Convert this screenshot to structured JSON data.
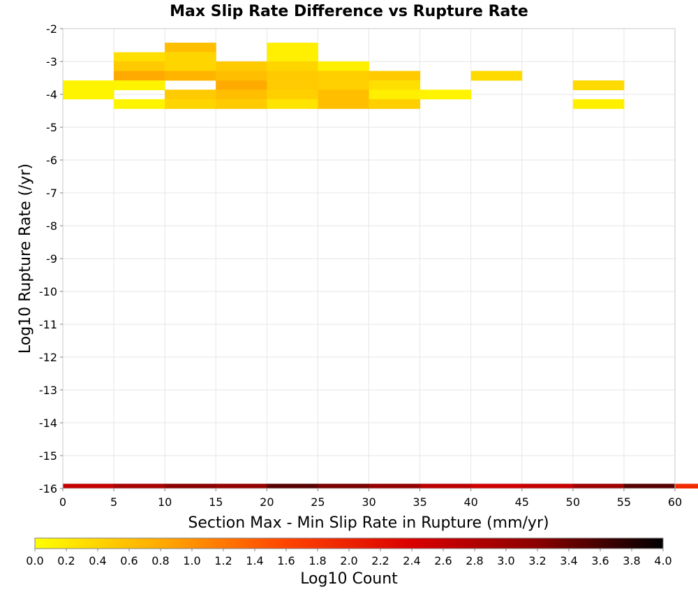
{
  "chart_data": {
    "type": "heatmap",
    "title": "Max Slip Rate Difference vs Rupture Rate",
    "xlabel": "Section Max - Min Slip Rate in Rupture (mm/yr)",
    "ylabel": "Log10 Rupture Rate (/yr)",
    "xlim": [
      0,
      60
    ],
    "ylim": [
      -16,
      -2
    ],
    "x_ticks": [
      "0",
      "5",
      "10",
      "15",
      "20",
      "25",
      "30",
      "35",
      "40",
      "45",
      "50",
      "55",
      "60"
    ],
    "y_ticks": [
      "-2",
      "-3",
      "-4",
      "-5",
      "-6",
      "-7",
      "-8",
      "-9",
      "-10",
      "-11",
      "-12",
      "-13",
      "-14",
      "-15",
      "-16"
    ],
    "grid": true,
    "cell_width": 5,
    "cell_height": 0.2857,
    "colorbar": {
      "label": "Log10 Count",
      "range": [
        0,
        4
      ],
      "ticks": [
        "0.0",
        "0.2",
        "0.4",
        "0.6",
        "0.8",
        "1.0",
        "1.2",
        "1.4",
        "1.6",
        "1.8",
        "2.0",
        "2.2",
        "2.4",
        "2.6",
        "2.8",
        "3.0",
        "3.2",
        "3.4",
        "3.6",
        "3.8",
        "4.0"
      ],
      "colors": [
        "#ffff00",
        "#ffaa00",
        "#ff4400",
        "#d90000",
        "#8a0000",
        "#000000"
      ]
    },
    "cells": [
      {
        "x0": 0,
        "y": -3.72,
        "value": 0.1
      },
      {
        "x0": 0,
        "y": -4.0,
        "value": 0.1
      },
      {
        "x0": 5,
        "y": -2.86,
        "value": 0.3
      },
      {
        "x0": 5,
        "y": -3.14,
        "value": 0.5
      },
      {
        "x0": 5,
        "y": -3.43,
        "value": 0.8
      },
      {
        "x0": 5,
        "y": -3.72,
        "value": 0.1
      },
      {
        "x0": 5,
        "y": -4.29,
        "value": 0.1
      },
      {
        "x0": 10,
        "y": -2.57,
        "value": 0.6
      },
      {
        "x0": 10,
        "y": -2.86,
        "value": 0.4
      },
      {
        "x0": 10,
        "y": -3.14,
        "value": 0.4
      },
      {
        "x0": 10,
        "y": -3.43,
        "value": 0.7
      },
      {
        "x0": 10,
        "y": -4.0,
        "value": 0.5
      },
      {
        "x0": 10,
        "y": -4.29,
        "value": 0.4
      },
      {
        "x0": 15,
        "y": -3.14,
        "value": 0.5
      },
      {
        "x0": 15,
        "y": -3.43,
        "value": 0.6
      },
      {
        "x0": 15,
        "y": -3.72,
        "value": 0.8
      },
      {
        "x0": 15,
        "y": -4.0,
        "value": 0.6
      },
      {
        "x0": 15,
        "y": -4.29,
        "value": 0.5
      },
      {
        "x0": 20,
        "y": -2.57,
        "value": 0.15
      },
      {
        "x0": 20,
        "y": -2.86,
        "value": 0.15
      },
      {
        "x0": 20,
        "y": -3.14,
        "value": 0.4
      },
      {
        "x0": 20,
        "y": -3.43,
        "value": 0.5
      },
      {
        "x0": 20,
        "y": -3.72,
        "value": 0.5
      },
      {
        "x0": 20,
        "y": -4.0,
        "value": 0.45
      },
      {
        "x0": 20,
        "y": -4.29,
        "value": 0.25
      },
      {
        "x0": 25,
        "y": -3.14,
        "value": 0.15
      },
      {
        "x0": 25,
        "y": -3.43,
        "value": 0.45
      },
      {
        "x0": 25,
        "y": -3.72,
        "value": 0.45
      },
      {
        "x0": 25,
        "y": -4.0,
        "value": 0.6
      },
      {
        "x0": 25,
        "y": -4.29,
        "value": 0.6
      },
      {
        "x0": 30,
        "y": -3.43,
        "value": 0.5
      },
      {
        "x0": 30,
        "y": -3.72,
        "value": 0.3
      },
      {
        "x0": 30,
        "y": -4.0,
        "value": 0.15
      },
      {
        "x0": 30,
        "y": -4.29,
        "value": 0.45
      },
      {
        "x0": 35,
        "y": -4.0,
        "value": 0.1
      },
      {
        "x0": 40,
        "y": -3.43,
        "value": 0.35
      },
      {
        "x0": 50,
        "y": -3.72,
        "value": 0.35
      },
      {
        "x0": 50,
        "y": -4.29,
        "value": 0.15
      }
    ],
    "bottom_row": {
      "y": -16,
      "values": [
        2.6,
        2.9,
        3.2,
        3.1,
        3.5,
        3.3,
        3.1,
        2.7,
        2.5,
        2.6,
        3.0,
        3.5,
        1.9
      ]
    }
  }
}
